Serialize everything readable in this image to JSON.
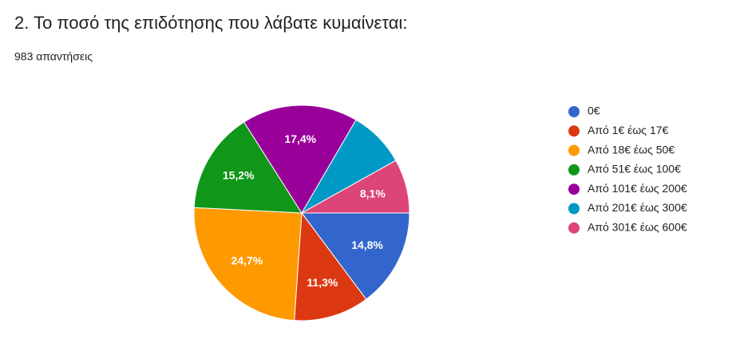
{
  "chart_data": {
    "type": "pie",
    "title": "2. Το ποσό της επιδότησης που λάβατε κυμαίνεται:",
    "subtitle": "983 απαντήσεις",
    "categories": [
      "0€",
      "Από 1€ έως 17€",
      "Από 18€ έως 50€",
      "Από 51€ έως 100€",
      "Από 101€ έως 200€",
      "Από 201€ έως 300€",
      "Από 301€ έως 600€"
    ],
    "values": [
      14.8,
      11.3,
      24.7,
      15.2,
      17.4,
      8.5,
      8.1
    ],
    "value_labels": [
      "14,8%",
      "11,3%",
      "24,7%",
      "15,2%",
      "17,4%",
      null,
      "8,1%"
    ],
    "colors": [
      "#3366cc",
      "#dc3912",
      "#ff9900",
      "#109618",
      "#990099",
      "#0099c6",
      "#dd4477"
    ],
    "legend": "right"
  }
}
